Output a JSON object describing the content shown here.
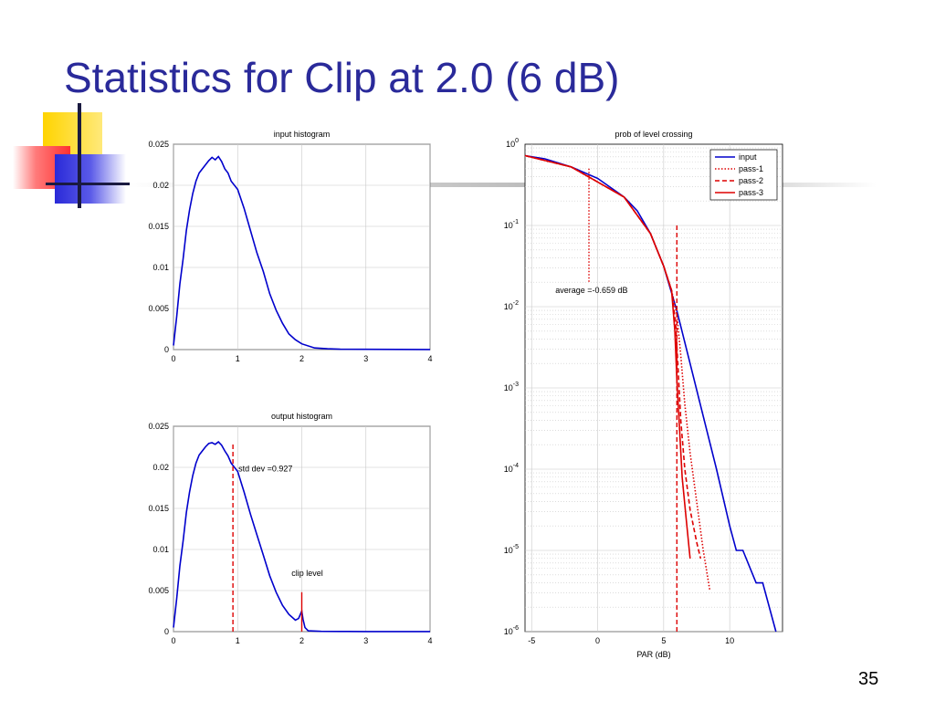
{
  "slide": {
    "title": "Statistics for Clip at 2.0 (6 dB)",
    "page_number": "35"
  },
  "colors": {
    "title": "#2a2a9a",
    "series_blue": "#0000cc",
    "series_red": "#dd0000"
  },
  "chart_data": [
    {
      "id": "input",
      "type": "line",
      "title": "input histogram",
      "xlabel": "",
      "ylabel": "",
      "xlim": [
        0,
        4
      ],
      "ylim": [
        0,
        0.025
      ],
      "xticks": [
        0,
        1,
        2,
        3,
        4
      ],
      "xtick_labels": [
        "0",
        "1",
        "2",
        "3",
        "4"
      ],
      "yticks": [
        0,
        0.005,
        0.01,
        0.015,
        0.02,
        0.025
      ],
      "ytick_labels": [
        "0",
        "0.005",
        "0.01",
        "0.015",
        "0.02",
        "0.025"
      ],
      "grid": true,
      "series": [
        {
          "color": "#0000cc",
          "style": "solid",
          "x": [
            0,
            0.05,
            0.1,
            0.15,
            0.2,
            0.25,
            0.3,
            0.35,
            0.4,
            0.45,
            0.5,
            0.55,
            0.6,
            0.65,
            0.7,
            0.75,
            0.8,
            0.85,
            0.9,
            1.0,
            1.1,
            1.2,
            1.3,
            1.4,
            1.5,
            1.6,
            1.7,
            1.8,
            1.9,
            2.0,
            2.2,
            2.4,
            2.6,
            3.0,
            3.5,
            4.0
          ],
          "y": [
            0.0005,
            0.004,
            0.008,
            0.011,
            0.0145,
            0.017,
            0.019,
            0.0205,
            0.0215,
            0.022,
            0.0225,
            0.023,
            0.0234,
            0.0231,
            0.0235,
            0.0229,
            0.022,
            0.0215,
            0.0205,
            0.0195,
            0.0172,
            0.0145,
            0.0118,
            0.0095,
            0.0068,
            0.0048,
            0.0032,
            0.0019,
            0.0012,
            0.0007,
            0.0002,
            0.0001,
            5e-05,
            3e-05,
            2e-05,
            1e-05
          ]
        }
      ]
    },
    {
      "id": "output",
      "type": "line",
      "title": "output histogram",
      "xlabel": "",
      "ylabel": "",
      "xlim": [
        0,
        4
      ],
      "ylim": [
        0,
        0.025
      ],
      "xticks": [
        0,
        1,
        2,
        3,
        4
      ],
      "xtick_labels": [
        "0",
        "1",
        "2",
        "3",
        "4"
      ],
      "yticks": [
        0,
        0.005,
        0.01,
        0.015,
        0.02,
        0.025
      ],
      "ytick_labels": [
        "0",
        "0.005",
        "0.01",
        "0.015",
        "0.02",
        "0.025"
      ],
      "grid": true,
      "series": [
        {
          "color": "#0000cc",
          "style": "solid",
          "x": [
            0,
            0.05,
            0.1,
            0.15,
            0.2,
            0.25,
            0.3,
            0.35,
            0.4,
            0.45,
            0.5,
            0.55,
            0.6,
            0.65,
            0.7,
            0.75,
            0.8,
            0.85,
            0.9,
            1.0,
            1.1,
            1.2,
            1.3,
            1.4,
            1.5,
            1.6,
            1.7,
            1.8,
            1.9,
            1.95,
            2.0,
            2.02,
            2.05,
            2.1,
            2.3,
            2.6,
            3.0,
            4.0
          ],
          "y": [
            0.0005,
            0.004,
            0.008,
            0.011,
            0.0145,
            0.017,
            0.019,
            0.0205,
            0.0215,
            0.022,
            0.0225,
            0.0229,
            0.023,
            0.0228,
            0.0231,
            0.0227,
            0.022,
            0.0214,
            0.0205,
            0.0195,
            0.017,
            0.0143,
            0.0118,
            0.0093,
            0.0068,
            0.0048,
            0.0032,
            0.0021,
            0.0014,
            0.0016,
            0.0025,
            0.0015,
            0.0005,
            0.0001,
            3e-05,
            2e-05,
            1e-05,
            1e-05
          ]
        }
      ],
      "annotations": [
        {
          "text": "std dev =0.927",
          "x": 0.927,
          "line_y": [
            0,
            0.023
          ],
          "color": "#dd0000",
          "style": "dashed"
        },
        {
          "text": "clip level",
          "x": 2.0,
          "line_y": [
            0,
            0.0048
          ],
          "color": "#dd0000",
          "style": "solid"
        }
      ]
    },
    {
      "id": "plc",
      "type": "line",
      "title": "prob of level crossing",
      "xlabel": "PAR (dB)",
      "ylabel": "",
      "xlim": [
        -5.5,
        14
      ],
      "ylim": [
        -6,
        0
      ],
      "y_scale": "log",
      "xticks": [
        -5,
        0,
        5,
        10
      ],
      "xtick_labels": [
        "-5",
        "0",
        "5",
        "10"
      ],
      "ytick_base": "10",
      "yticks": [
        -6,
        -5,
        -4,
        -3,
        -2,
        -1,
        0
      ],
      "ytick_exponents": [
        "-6",
        "-5",
        "-4",
        "-3",
        "-2",
        "-1",
        "0"
      ],
      "grid": true,
      "legend": {
        "position": "top-right",
        "entries": [
          {
            "label": "input",
            "color": "#0000cc",
            "style": "solid"
          },
          {
            "label": "pass-1",
            "color": "#dd0000",
            "style": "dotted"
          },
          {
            "label": "pass-2",
            "color": "#dd0000",
            "style": "dashed"
          },
          {
            "label": "pass-3",
            "color": "#dd0000",
            "style": "solid"
          }
        ]
      },
      "series": [
        {
          "name": "input",
          "color": "#0000cc",
          "style": "solid",
          "x": [
            -5.5,
            -4,
            -2,
            0,
            2,
            3,
            4,
            5,
            6,
            7,
            8,
            9,
            10,
            10.5,
            11,
            12,
            12.5,
            13.5
          ],
          "y": [
            -0.14,
            -0.18,
            -0.28,
            -0.42,
            -0.65,
            -0.82,
            -1.1,
            -1.5,
            -2.05,
            -2.7,
            -3.35,
            -4.0,
            -4.7,
            -5.0,
            -5.0,
            -5.4,
            -5.4,
            -6.0
          ]
        },
        {
          "name": "pass-1",
          "color": "#dd0000",
          "style": "dotted",
          "x": [
            -5.5,
            -2,
            2,
            4,
            5,
            5.6,
            6.0,
            6.3,
            6.6,
            7.0,
            7.5,
            8.0,
            8.5
          ],
          "y": [
            -0.14,
            -0.28,
            -0.65,
            -1.1,
            -1.5,
            -1.8,
            -2.1,
            -2.6,
            -3.2,
            -3.8,
            -4.4,
            -5.0,
            -5.5
          ]
        },
        {
          "name": "pass-2",
          "color": "#dd0000",
          "style": "dashed",
          "x": [
            -5.5,
            -2,
            2,
            4,
            5,
            5.6,
            5.9,
            6.1,
            6.3,
            6.6,
            7.0,
            7.5,
            7.8
          ],
          "y": [
            -0.14,
            -0.28,
            -0.65,
            -1.1,
            -1.5,
            -1.8,
            -2.2,
            -2.8,
            -3.4,
            -4.0,
            -4.5,
            -4.9,
            -5.1
          ]
        },
        {
          "name": "pass-3",
          "color": "#dd0000",
          "style": "solid",
          "x": [
            -5.5,
            -2,
            2,
            4,
            5,
            5.6,
            5.85,
            6.0,
            6.2,
            6.4,
            6.7,
            7.0
          ],
          "y": [
            -0.14,
            -0.28,
            -0.65,
            -1.1,
            -1.5,
            -1.8,
            -2.3,
            -2.9,
            -3.5,
            -4.1,
            -4.6,
            -5.1
          ]
        }
      ],
      "annotations": [
        {
          "text": "average =-0.659 dB",
          "x": -0.659,
          "line_y": [
            -0.3,
            -1.7
          ],
          "color": "#dd0000",
          "style": "dotted"
        },
        {
          "x": 6.0,
          "line_y": [
            -1.0,
            -6.0
          ],
          "color": "#dd0000",
          "style": "dashed"
        }
      ]
    }
  ]
}
